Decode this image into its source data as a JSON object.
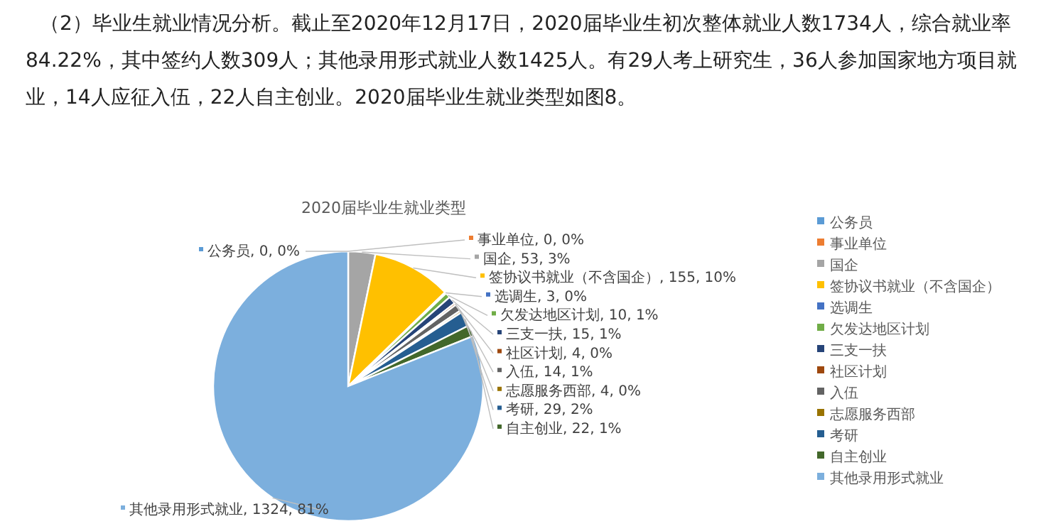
{
  "chart_data": {
    "type": "pie",
    "title": "2020届毕业生就业类型",
    "annotations": [
      "（2）毕业生就业情况分析。截止至2020年12月17日，2020届毕业生初次整体就业人数1734人，综合就业率84.22%，其中签约人数309人；其他录用形式就业人数1425人。有29人考上研究生，36人参加国家地方项目就业，14人应征入伍，22人自主创业。2020届毕业生就业类型如图8。"
    ],
    "categories": [
      "公务员",
      "事业单位",
      "国企",
      "签协议书就业（不含国企）",
      "选调生",
      "欠发达地区计划",
      "三支一扶",
      "社区计划",
      "入伍",
      "志愿服务西部",
      "考研",
      "自主创业",
      "其他录用形式就业"
    ],
    "values": [
      0,
      0,
      53,
      155,
      3,
      10,
      15,
      4,
      14,
      4,
      29,
      22,
      1324
    ],
    "colors": [
      "#5b9bd5",
      "#ed7d31",
      "#a5a5a5",
      "#ffc000",
      "#4472c4",
      "#70ad47",
      "#264478",
      "#9e480e",
      "#636363",
      "#997300",
      "#255e91",
      "#43682b",
      "#7cafdd"
    ],
    "value_labels": [
      "公务员, 0, 0%",
      "事业单位, 0, 0%",
      "国企, 53, 3%",
      "签协议书就业（不含国企）, 155, 10%",
      "选调生, 3, 0%",
      "欠发达地区计划, 10, 1%",
      "三支一扶, 15, 1%",
      "社区计划, 4, 0%",
      "入伍, 14, 1%",
      "志愿服务西部, 4, 0%",
      "考研, 29, 2%",
      "自主创业, 22, 1%",
      "其他录用形式就业, 1324, 81%"
    ],
    "legend": "right"
  }
}
